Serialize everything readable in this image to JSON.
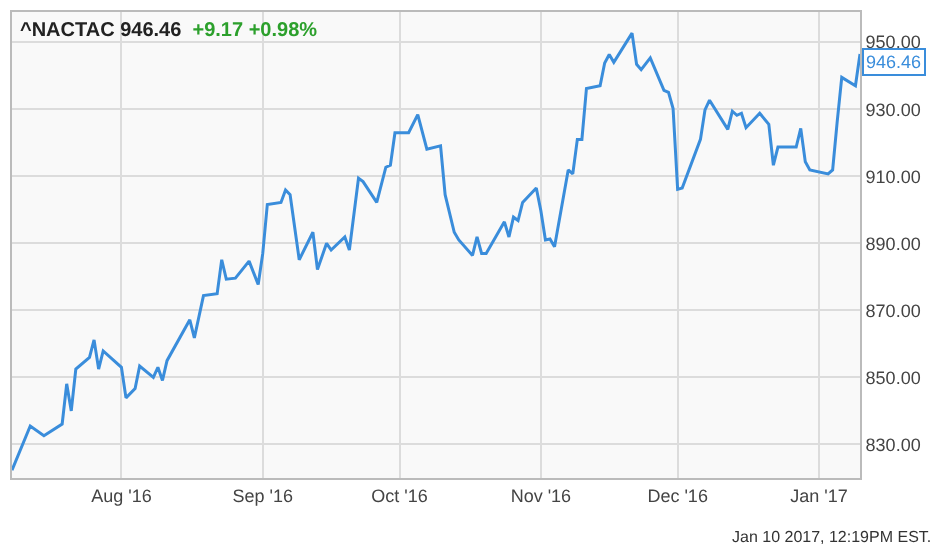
{
  "chart_data": {
    "type": "line",
    "title": "^NACTAC 946.46",
    "subtitle": "+9.17 +0.98%",
    "annotations": [
      {
        "text": "946.46",
        "x": "2017-01-10",
        "y": 946.46
      },
      "Jan 10 2017, 12:19PM EST."
    ],
    "x": [
      "2016-07-08",
      "2016-07-12",
      "2016-07-15",
      "2016-07-19",
      "2016-07-20",
      "2016-07-21",
      "2016-07-22",
      "2016-07-25",
      "2016-07-26",
      "2016-07-27",
      "2016-07-28",
      "2016-08-01",
      "2016-08-02",
      "2016-08-04",
      "2016-08-05",
      "2016-08-08",
      "2016-08-09",
      "2016-08-10",
      "2016-08-11",
      "2016-08-16",
      "2016-08-17",
      "2016-08-19",
      "2016-08-22",
      "2016-08-23",
      "2016-08-24",
      "2016-08-26",
      "2016-08-29",
      "2016-08-31",
      "2016-09-01",
      "2016-09-02",
      "2016-09-05",
      "2016-09-06",
      "2016-09-07",
      "2016-09-09",
      "2016-09-12",
      "2016-09-13",
      "2016-09-15",
      "2016-09-16",
      "2016-09-19",
      "2016-09-20",
      "2016-09-22",
      "2016-09-23",
      "2016-09-26",
      "2016-09-28",
      "2016-09-29",
      "2016-09-30",
      "2016-10-03",
      "2016-10-05",
      "2016-10-07",
      "2016-10-10",
      "2016-10-11",
      "2016-10-13",
      "2016-10-14",
      "2016-10-17",
      "2016-10-18",
      "2016-10-19",
      "2016-10-20",
      "2016-10-24",
      "2016-10-25",
      "2016-10-26",
      "2016-10-27",
      "2016-10-28",
      "2016-10-31",
      "2016-11-01",
      "2016-11-02",
      "2016-11-03",
      "2016-11-04",
      "2016-11-07",
      "2016-11-08",
      "2016-11-09",
      "2016-11-10",
      "2016-11-11",
      "2016-11-14",
      "2016-11-15",
      "2016-11-16",
      "2016-11-17",
      "2016-11-21",
      "2016-11-22",
      "2016-11-23",
      "2016-11-25",
      "2016-11-28",
      "2016-11-29",
      "2016-11-30",
      "2016-12-01",
      "2016-12-02",
      "2016-12-06",
      "2016-12-07",
      "2016-12-08",
      "2016-12-12",
      "2016-12-13",
      "2016-12-14",
      "2016-12-15",
      "2016-12-16",
      "2016-12-19",
      "2016-12-21",
      "2016-12-22",
      "2016-12-23",
      "2016-12-27",
      "2016-12-28",
      "2016-12-29",
      "2016-12-30",
      "2017-01-03",
      "2017-01-04",
      "2017-01-05",
      "2017-01-06",
      "2017-01-09",
      "2017-01-10"
    ],
    "series": [
      {
        "color": "#3a8ddb",
        "values": [
          822.3,
          835.5,
          832.6,
          836.1,
          848.1,
          840,
          852.5,
          856,
          861.2,
          852.5,
          857.9,
          853,
          843.9,
          846.7,
          853.4,
          850,
          853,
          849.1,
          855,
          867.2,
          861.8,
          874.4,
          875,
          885.1,
          879.3,
          879.6,
          884.7,
          877.7,
          887,
          901.6,
          902.2,
          905.9,
          904.5,
          885.1,
          893.3,
          882.2,
          890,
          888,
          891.9,
          888,
          909.4,
          908.4,
          902.2,
          912.7,
          913.3,
          923,
          923,
          928.4,
          918.1,
          919.1,
          904.5,
          893.3,
          891,
          886.4,
          891.9,
          887,
          887,
          896.4,
          891.9,
          897.8,
          896.8,
          902.2,
          906.5,
          899.7,
          891,
          891.3,
          889,
          911.9,
          910.7,
          921,
          921,
          936.2,
          937,
          943.8,
          946.3,
          944,
          952.7,
          943.4,
          941.8,
          945.3,
          935.6,
          935,
          930.2,
          906.1,
          906.5,
          921,
          929.8,
          932.7,
          924,
          929.4,
          928.2,
          928.8,
          924.5,
          928.8,
          925.5,
          913.3,
          918.7,
          918.7,
          924.3,
          914.3,
          911.9,
          910.7,
          911.9,
          926.3,
          939.5,
          937,
          946.46
        ]
      }
    ],
    "xlim": [
      "2016-07-08",
      "2017-01-10"
    ],
    "xticks": [
      {
        "value": "2016-08-01",
        "label": "Aug '16"
      },
      {
        "value": "2016-09-01",
        "label": "Sep '16"
      },
      {
        "value": "2016-10-01",
        "label": "Oct '16"
      },
      {
        "value": "2016-11-01",
        "label": "Nov '16"
      },
      {
        "value": "2016-12-01",
        "label": "Dec '16"
      },
      {
        "value": "2017-01-01",
        "label": "Jan '17"
      }
    ],
    "ylim": [
      820,
      959
    ],
    "yticks": [
      {
        "value": 830,
        "label": "830.00"
      },
      {
        "value": 850,
        "label": "850.00"
      },
      {
        "value": 870,
        "label": "870.00"
      },
      {
        "value": 890,
        "label": "890.00"
      },
      {
        "value": 910,
        "label": "910.00"
      },
      {
        "value": 930,
        "label": "930.00"
      },
      {
        "value": 950,
        "label": "950.00"
      }
    ],
    "grid": true,
    "marker": "none",
    "line_style": "solid"
  }
}
